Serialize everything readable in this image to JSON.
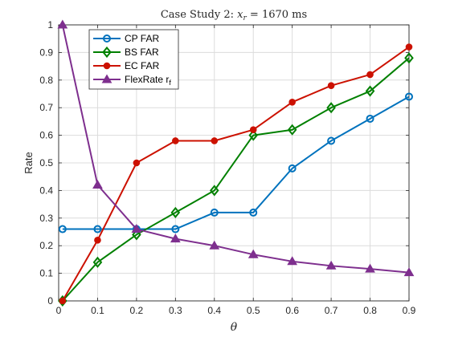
{
  "chart_data": {
    "type": "line",
    "title_prefix": "Case Study 2: ",
    "title_var": "x",
    "title_sub": "r",
    "title_suffix": " = 1670 ms",
    "xlabel": "θ",
    "ylabel": "Rate",
    "xlim": [
      0,
      0.9
    ],
    "ylim": [
      0,
      1
    ],
    "xticks": [
      0,
      0.1,
      0.2,
      0.3,
      0.4,
      0.5,
      0.6,
      0.7,
      0.8,
      0.9
    ],
    "xtick_labels": [
      "0",
      "0.1",
      "0.2",
      "0.3",
      "0.4",
      "0.5",
      "0.6",
      "0.7",
      "0.8",
      "0.9"
    ],
    "yticks": [
      0,
      0.1,
      0.2,
      0.3,
      0.4,
      0.5,
      0.6,
      0.7,
      0.8,
      0.9,
      1
    ],
    "ytick_labels": [
      "0",
      "0.1",
      "0.2",
      "0.3",
      "0.4",
      "0.5",
      "0.6",
      "0.7",
      "0.8",
      "0.9",
      "1"
    ],
    "grid": true,
    "legend_position": "top-left",
    "series": [
      {
        "name": "CP FAR",
        "color": "#0072BD",
        "marker": "circle-open",
        "x": [
          0.01,
          0.1,
          0.2,
          0.3,
          0.4,
          0.5,
          0.6,
          0.7,
          0.8,
          0.9
        ],
        "y": [
          0.26,
          0.26,
          0.26,
          0.26,
          0.32,
          0.32,
          0.48,
          0.58,
          0.66,
          0.74
        ]
      },
      {
        "name": "BS FAR",
        "color": "#008000",
        "marker": "diamond-open",
        "x": [
          0.01,
          0.1,
          0.2,
          0.3,
          0.4,
          0.5,
          0.6,
          0.7,
          0.8,
          0.9
        ],
        "y": [
          0,
          0.14,
          0.24,
          0.32,
          0.4,
          0.6,
          0.62,
          0.7,
          0.76,
          0.88
        ]
      },
      {
        "name": "EC FAR",
        "color": "#CC1100",
        "marker": "circle-filled",
        "x": [
          0.01,
          0.1,
          0.2,
          0.3,
          0.4,
          0.5,
          0.6,
          0.7,
          0.8,
          0.9
        ],
        "y": [
          0,
          0.22,
          0.5,
          0.58,
          0.58,
          0.62,
          0.72,
          0.78,
          0.82,
          0.92
        ]
      },
      {
        "name": "FlexRate r",
        "name_sub": "f",
        "color": "#7E2F8E",
        "marker": "triangle-filled",
        "x": [
          0.01,
          0.1,
          0.2,
          0.3,
          0.4,
          0.5,
          0.6,
          0.7,
          0.8,
          0.9
        ],
        "y": [
          1,
          0.42,
          0.26,
          0.225,
          0.2,
          0.168,
          0.143,
          0.127,
          0.116,
          0.103
        ]
      }
    ]
  }
}
